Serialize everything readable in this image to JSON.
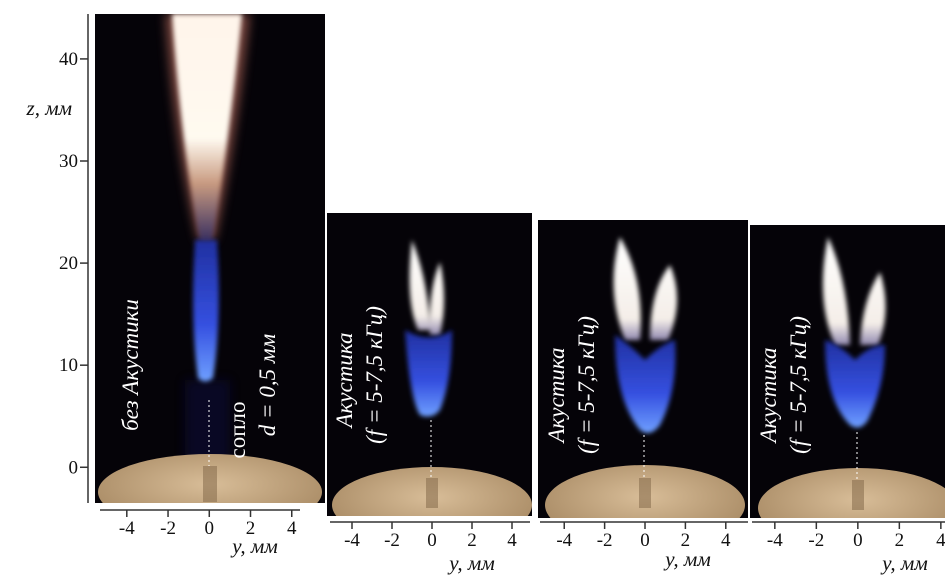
{
  "panels": [
    {
      "captions": [
        "без Акустики",
        "сопло",
        "d = 0,5 мм"
      ],
      "x_axis": {
        "label": "y, мм",
        "xlim": [
          -5.3,
          4.4
        ],
        "xticks": [
          -4,
          -2,
          0,
          2,
          4
        ]
      },
      "z_axis": {
        "label": "z, мм",
        "zlim": [
          -3.5,
          44.4
        ],
        "zticks": [
          0,
          10,
          20,
          30,
          40
        ]
      }
    },
    {
      "captions": [
        "Акустика",
        "(f = 5-7,5 кГц)"
      ],
      "x_axis": {
        "label": "y, мм",
        "xlim": [
          -5.1,
          4.9
        ],
        "xticks": [
          -4,
          -2,
          0,
          2,
          4
        ]
      }
    },
    {
      "captions": [
        "Акустика",
        "(f = 5-7,5 кГц)"
      ],
      "x_axis": {
        "label": "y, мм",
        "xlim": [
          -5.2,
          5.1
        ],
        "xticks": [
          -4,
          -2,
          0,
          2,
          4
        ]
      }
    },
    {
      "captions": [
        "Акустика",
        "(f = 5-7,5 кГц)"
      ],
      "x_axis": {
        "label": "y, мм",
        "xlim": [
          -5.1,
          4.2
        ],
        "xticks": [
          -4,
          -2,
          0,
          2,
          4
        ]
      }
    }
  ]
}
